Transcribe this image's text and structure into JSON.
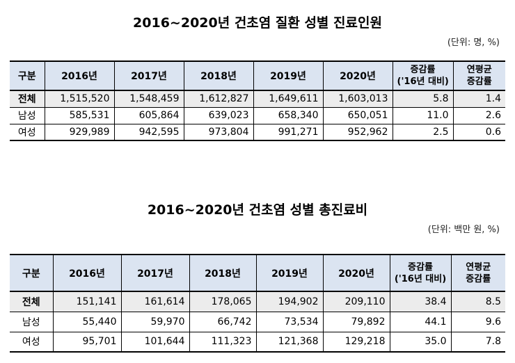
{
  "table1": {
    "title": "2016~2020년 건초염 질환 성별 진료인원",
    "unit": "(단위: 명, %)",
    "headers": [
      "구분",
      "2016년",
      "2017년",
      "2018년",
      "2019년",
      "2020년",
      "증감률",
      "('16년 대비)",
      "연평균",
      "증감률"
    ],
    "rows": [
      [
        "전체",
        "1,515,520",
        "1,548,459",
        "1,612,827",
        "1,649,611",
        "1,603,013",
        "5.8",
        "1.4"
      ],
      [
        "남성",
        "585,531",
        "605,864",
        "639,023",
        "658,340",
        "650,051",
        "11.0",
        "2.6"
      ],
      [
        "여성",
        "929,989",
        "942,595",
        "973,804",
        "991,271",
        "952,962",
        "2.5",
        "0.6"
      ]
    ]
  },
  "table2": {
    "title": "2016~2020년 건초염 성별 총진료비",
    "unit": "(단위: 백만 원, %)",
    "headers": [
      "구분",
      "2016년",
      "2017년",
      "2018년",
      "2019년",
      "2020년",
      "증감률",
      "('16년 대비)",
      "연평균",
      "증감률"
    ],
    "rows": [
      [
        "전체",
        "151,141",
        "161,614",
        "178,065",
        "194,902",
        "209,110",
        "38.4",
        "8.5"
      ],
      [
        "남성",
        "55,440",
        "59,970",
        "66,742",
        "73,534",
        "79,892",
        "44.1",
        "9.6"
      ],
      [
        "여성",
        "95,701",
        "101,644",
        "111,323",
        "121,368",
        "129,218",
        "35.0",
        "7.8"
      ]
    ]
  }
}
